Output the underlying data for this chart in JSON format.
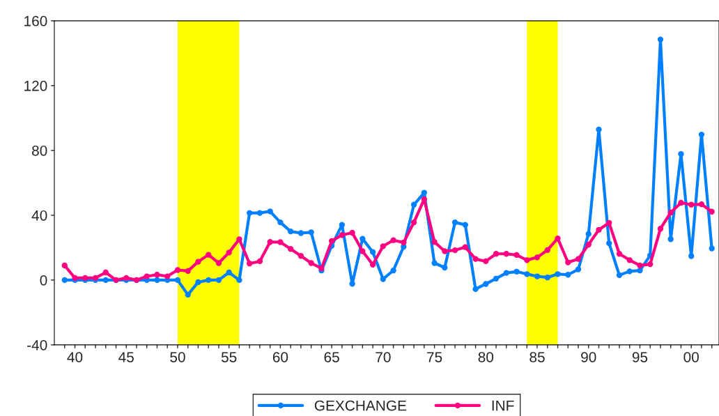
{
  "chart_data": {
    "type": "line",
    "x": [
      1939,
      1940,
      1941,
      1942,
      1943,
      1944,
      1945,
      1946,
      1947,
      1948,
      1949,
      1950,
      1951,
      1952,
      1953,
      1954,
      1955,
      1956,
      1957,
      1958,
      1959,
      1960,
      1961,
      1962,
      1963,
      1964,
      1965,
      1966,
      1967,
      1968,
      1969,
      1970,
      1971,
      1972,
      1973,
      1974,
      1975,
      1976,
      1977,
      1978,
      1979,
      1980,
      1981,
      1982,
      1983,
      1984,
      1985,
      1986,
      1987,
      1988,
      1989,
      1990,
      1991,
      1992,
      1993,
      1994,
      1995,
      1996,
      1997,
      1998,
      1999,
      2000,
      2001,
      2002
    ],
    "series": [
      {
        "name": "GEXCHANGE",
        "color": "#0080ff",
        "values": [
          0,
          0,
          0,
          0,
          0,
          0,
          0,
          0,
          0,
          0,
          0,
          0,
          -9,
          -1.3,
          0,
          0,
          4.7,
          0,
          41.4,
          41.4,
          42.4,
          35.6,
          30,
          29,
          29.5,
          5.9,
          21.2,
          34.1,
          -2.3,
          25.5,
          17.3,
          0.6,
          5.9,
          20.6,
          46.5,
          53.9,
          10.5,
          7.7,
          35.6,
          34.1,
          -5.6,
          -2.4,
          0.9,
          4.4,
          5.2,
          3.7,
          2.3,
          1.6,
          3.7,
          3.3,
          6.6,
          28.5,
          92.9,
          22.7,
          3,
          5.4,
          5.9,
          15.2,
          148.5,
          25.2,
          77.8,
          14.8,
          89.8,
          19.5
        ]
      },
      {
        "name": "INF",
        "color": "#ff0080",
        "values": [
          9,
          1.3,
          1.3,
          1.3,
          4.7,
          0,
          1.3,
          0,
          2.3,
          3.3,
          2.3,
          6.2,
          5.6,
          11.3,
          15.6,
          10.5,
          17,
          25.2,
          10.2,
          11.6,
          23.5,
          23.4,
          19.2,
          14.9,
          10.5,
          7.2,
          24.1,
          27.8,
          29.2,
          17.8,
          9.5,
          20.9,
          24.6,
          23.2,
          35.6,
          49.9,
          23.5,
          17.8,
          18.4,
          20.3,
          13,
          11.6,
          16.2,
          16.2,
          15.5,
          12.3,
          14,
          18.5,
          25.7,
          10.9,
          13,
          21.9,
          31,
          35.3,
          16.2,
          12.3,
          9,
          9.8,
          31.7,
          41.7,
          47.7,
          46.5,
          46.8,
          42.2
        ]
      }
    ],
    "xlim": [
      1938,
      2002.7
    ],
    "xticks": [
      {
        "value": 1939,
        "label": null
      },
      {
        "value": 1940,
        "label": "40"
      },
      {
        "value": 1941,
        "label": null
      },
      {
        "value": 1942,
        "label": null
      },
      {
        "value": 1943,
        "label": null
      },
      {
        "value": 1944,
        "label": null
      },
      {
        "value": 1945,
        "label": "45"
      },
      {
        "value": 1946,
        "label": null
      },
      {
        "value": 1947,
        "label": null
      },
      {
        "value": 1948,
        "label": null
      },
      {
        "value": 1949,
        "label": null
      },
      {
        "value": 1950,
        "label": "50"
      },
      {
        "value": 1951,
        "label": null
      },
      {
        "value": 1952,
        "label": null
      },
      {
        "value": 1953,
        "label": null
      },
      {
        "value": 1954,
        "label": null
      },
      {
        "value": 1955,
        "label": "55"
      },
      {
        "value": 1956,
        "label": null
      },
      {
        "value": 1957,
        "label": null
      },
      {
        "value": 1958,
        "label": null
      },
      {
        "value": 1959,
        "label": null
      },
      {
        "value": 1960,
        "label": "60"
      },
      {
        "value": 1961,
        "label": null
      },
      {
        "value": 1962,
        "label": null
      },
      {
        "value": 1963,
        "label": null
      },
      {
        "value": 1964,
        "label": null
      },
      {
        "value": 1965,
        "label": "65"
      },
      {
        "value": 1966,
        "label": null
      },
      {
        "value": 1967,
        "label": null
      },
      {
        "value": 1968,
        "label": null
      },
      {
        "value": 1969,
        "label": null
      },
      {
        "value": 1970,
        "label": "70"
      },
      {
        "value": 1971,
        "label": null
      },
      {
        "value": 1972,
        "label": null
      },
      {
        "value": 1973,
        "label": null
      },
      {
        "value": 1974,
        "label": null
      },
      {
        "value": 1975,
        "label": "75"
      },
      {
        "value": 1976,
        "label": null
      },
      {
        "value": 1977,
        "label": null
      },
      {
        "value": 1978,
        "label": null
      },
      {
        "value": 1979,
        "label": null
      },
      {
        "value": 1980,
        "label": "80"
      },
      {
        "value": 1981,
        "label": null
      },
      {
        "value": 1982,
        "label": null
      },
      {
        "value": 1983,
        "label": null
      },
      {
        "value": 1984,
        "label": null
      },
      {
        "value": 1985,
        "label": "85"
      },
      {
        "value": 1986,
        "label": null
      },
      {
        "value": 1987,
        "label": null
      },
      {
        "value": 1988,
        "label": null
      },
      {
        "value": 1989,
        "label": null
      },
      {
        "value": 1990,
        "label": "90"
      },
      {
        "value": 1991,
        "label": null
      },
      {
        "value": 1992,
        "label": null
      },
      {
        "value": 1993,
        "label": null
      },
      {
        "value": 1994,
        "label": null
      },
      {
        "value": 1995,
        "label": "95"
      },
      {
        "value": 1996,
        "label": null
      },
      {
        "value": 1997,
        "label": null
      },
      {
        "value": 1998,
        "label": null
      },
      {
        "value": 1999,
        "label": null
      },
      {
        "value": 2000,
        "label": "00"
      },
      {
        "value": 2001,
        "label": null
      },
      {
        "value": 2002,
        "label": null
      }
    ],
    "ylim": [
      -40,
      160
    ],
    "yticks": [
      -40,
      0,
      40,
      80,
      120,
      160
    ],
    "bands": [
      {
        "axis": "x",
        "from": 1950,
        "to": 1956,
        "color": "#ffff00"
      },
      {
        "axis": "x",
        "from": 1984,
        "to": 1987,
        "color": "#ffff00"
      }
    ],
    "marker": "circle",
    "line_style": "solid",
    "grid": false,
    "legend": "bottom"
  }
}
